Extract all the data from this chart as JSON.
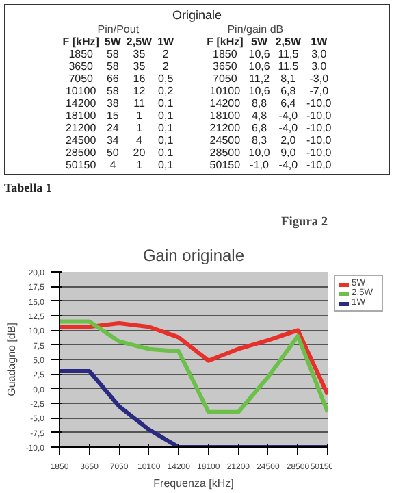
{
  "chart_data": [
    {
      "type": "other",
      "title": "Originale",
      "annotations": [
        "Pin/Pout",
        "Pin/gain dB",
        "F [kHz]  5W  2,5W  1W  F [kHz]  5W  2,5W  1W",
        "1850  58  35  2  1850  10,6  11,5  3,0",
        "3650  58  35  2  3650  10,6  11,5  3,0",
        "7050  66  16  0,5  7050  11,2  8,1  -3,0",
        "10100  58  12  0,2  10100  10,6  6,8  -7,0",
        "14200  38  11  0,1  14200  8,8  6,4  -10,0",
        "18100  15  1  0,1  18100  4,8  -4,0  -10,0",
        "21200  24  1  0,1  21200  6,8  -4,0  -10,0",
        "24500  34  4  0,1  24500  8,3  2,0  -10,0",
        "28500  50  20  0,1  28500  10,0  9,0  -10,0",
        "50150  4  1  0,1  50150  -1,0  -4,0  -10,0",
        "Tabella 1"
      ]
    },
    {
      "type": "line",
      "title": "Gain originale",
      "xlabel": "Frequenza [kHz]",
      "ylabel": "Guadagno [dB]",
      "annotations": [
        "Figura 2"
      ],
      "categories": [
        "1850",
        "3650",
        "7050",
        "10100",
        "14200",
        "18100",
        "21200",
        "24500",
        "28500",
        "50150"
      ],
      "series": [
        {
          "name": "5W",
          "color": "#e8302a",
          "values": [
            10.6,
            10.6,
            11.2,
            10.6,
            8.8,
            4.8,
            6.8,
            8.3,
            10.0,
            -1.0
          ]
        },
        {
          "name": "2.5W",
          "color": "#6cc04a",
          "values": [
            11.5,
            11.5,
            8.1,
            6.8,
            6.4,
            -4.0,
            -4.0,
            2.0,
            9.0,
            -4.0
          ]
        },
        {
          "name": "1W",
          "color": "#2a2a80",
          "values": [
            3.0,
            3.0,
            -3.0,
            -7.0,
            -10.0,
            -10.0,
            -10.0,
            -10.0,
            -10.0,
            -10.0
          ]
        }
      ],
      "ylim": [
        -10,
        20
      ],
      "yticks": [
        {
          "value": -10,
          "label": "-10,0"
        },
        {
          "value": -7.5,
          "label": "-7,5"
        },
        {
          "value": -5,
          "label": "-5,0"
        },
        {
          "value": -2.5,
          "label": "-2,5"
        },
        {
          "value": 0,
          "label": "0,0"
        },
        {
          "value": 2.5,
          "label": "2,5"
        },
        {
          "value": 5,
          "label": "5,0"
        },
        {
          "value": 7.5,
          "label": "7,5"
        },
        {
          "value": 10,
          "label": "10,0"
        },
        {
          "value": 12.5,
          "label": "12,5"
        },
        {
          "value": 15,
          "label": "15,0"
        },
        {
          "value": 17.5,
          "label": "17,5"
        },
        {
          "value": 20,
          "label": "20,0"
        }
      ],
      "grid": "y",
      "legend": "right",
      "marker": "none",
      "line_style": "solid"
    }
  ]
}
